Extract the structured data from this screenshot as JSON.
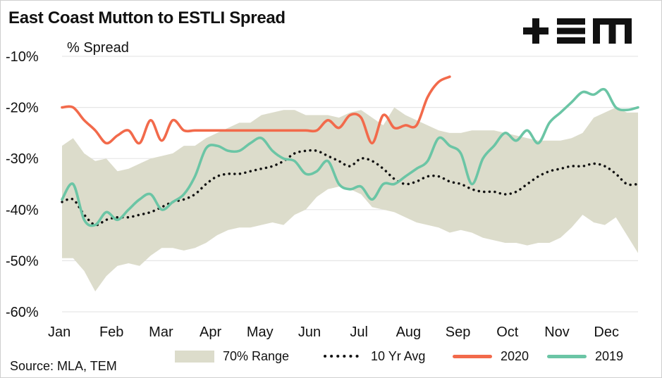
{
  "title": "East Coast Mutton to ESTLI Spread",
  "source": "Source: MLA, TEM",
  "logo_text": "+EM",
  "colors": {
    "range": "#dcdccb",
    "avg": "#111111",
    "s2020": "#f26a4b",
    "s2019": "#6bc5a5",
    "grid": "#e6e6e6"
  },
  "chart_data": {
    "type": "line",
    "ylabel": "% Spread",
    "xlabel": "",
    "ylim": [
      -60,
      -10
    ],
    "yticks": [
      -10,
      -20,
      -30,
      -40,
      -50,
      -60
    ],
    "ytick_labels": [
      "-10%",
      "-20%",
      "-30%",
      "-40%",
      "-50%",
      "-60%"
    ],
    "categories": [
      "Jan",
      "Feb",
      "Mar",
      "Apr",
      "May",
      "Jun",
      "Jul",
      "Aug",
      "Sep",
      "Oct",
      "Nov",
      "Dec"
    ],
    "xlim": [
      0,
      52
    ],
    "grid": "horizontal",
    "legend_position": "bottom",
    "legend": [
      "70% Range",
      "10 Yr Avg",
      "2020",
      "2019"
    ],
    "series": [
      {
        "name": "70% Range",
        "kind": "band",
        "x": [
          0,
          1,
          2,
          3,
          4,
          5,
          6,
          7,
          8,
          9,
          10,
          11,
          12,
          13,
          14,
          15,
          16,
          17,
          18,
          19,
          20,
          21,
          22,
          23,
          24,
          25,
          26,
          27,
          28,
          29,
          30,
          31,
          32,
          33,
          34,
          35,
          36,
          37,
          38,
          39,
          40,
          41,
          42,
          43,
          44,
          45,
          46,
          47,
          48,
          49,
          50,
          51,
          52
        ],
        "upper": [
          -27.5,
          -26,
          -29,
          -30.5,
          -30,
          -32.5,
          -32,
          -31,
          -30,
          -29.5,
          -29,
          -27.5,
          -27.5,
          -26,
          -25,
          -24,
          -23,
          -23,
          -21.5,
          -21,
          -20.5,
          -20.5,
          -21.5,
          -21.5,
          -21.5,
          -22,
          -21,
          -20.5,
          -22,
          -23.5,
          -20,
          -21.5,
          -22.5,
          -23.5,
          -24.5,
          -25,
          -25,
          -24.5,
          -24.5,
          -24.5,
          -25,
          -25.5,
          -26,
          -26.5,
          -26.5,
          -26.5,
          -26,
          -25,
          -22,
          -21,
          -20,
          -21,
          -21
        ],
        "lower": [
          -49.5,
          -49.5,
          -52,
          -56,
          -53,
          -51,
          -50.5,
          -51,
          -49,
          -47.5,
          -47.5,
          -48,
          -47.5,
          -46.5,
          -45,
          -44,
          -43.5,
          -43.5,
          -43,
          -42.5,
          -43,
          -41,
          -40,
          -37.5,
          -36,
          -35.5,
          -36,
          -37,
          -39.5,
          -40,
          -40.5,
          -41.5,
          -42.5,
          -43,
          -43.5,
          -44.5,
          -44,
          -44.5,
          -45.5,
          -46,
          -46.5,
          -46.5,
          -47,
          -46.5,
          -46.5,
          -45.5,
          -43.5,
          -41,
          -42.5,
          -43,
          -41.5,
          -45,
          -48.5
        ]
      },
      {
        "name": "10 Yr Avg",
        "kind": "dotted",
        "x": [
          0,
          1,
          2,
          3,
          4,
          5,
          6,
          7,
          8,
          9,
          10,
          11,
          12,
          13,
          14,
          15,
          16,
          17,
          18,
          19,
          20,
          21,
          22,
          23,
          24,
          25,
          26,
          27,
          28,
          29,
          30,
          31,
          32,
          33,
          34,
          35,
          36,
          37,
          38,
          39,
          40,
          41,
          42,
          43,
          44,
          45,
          46,
          47,
          48,
          49,
          50,
          51,
          52
        ],
        "y": [
          -38.5,
          -38,
          -41,
          -43,
          -42,
          -41.5,
          -41.5,
          -41,
          -40.5,
          -39.5,
          -38.5,
          -38,
          -37,
          -35,
          -33.5,
          -33,
          -33,
          -32.5,
          -32,
          -31.5,
          -30.5,
          -29,
          -28.5,
          -28.5,
          -29.5,
          -30.5,
          -31.5,
          -30,
          -30.5,
          -32,
          -34,
          -35,
          -34.5,
          -33.5,
          -33.5,
          -34.5,
          -35,
          -36,
          -36.5,
          -36.5,
          -37,
          -36.5,
          -35,
          -33.5,
          -32.5,
          -32,
          -31.5,
          -31.5,
          -31,
          -31.5,
          -33,
          -35,
          -35
        ]
      },
      {
        "name": "2020",
        "kind": "solid",
        "x": [
          0,
          1,
          2,
          3,
          4,
          5,
          6,
          7,
          8,
          9,
          10,
          11,
          12,
          13,
          14,
          15,
          16,
          17,
          18,
          19,
          20,
          21,
          22,
          23,
          24,
          25,
          26,
          27,
          28,
          29,
          30,
          31,
          32,
          33,
          34,
          35
        ],
        "y": [
          -20,
          -20,
          -22.5,
          -24.5,
          -27,
          -25.5,
          -24.5,
          -27,
          -22.5,
          -26.5,
          -22.5,
          -24.5,
          -24.5,
          -24.5,
          -24.5,
          -24.5,
          -24.5,
          -24.5,
          -24.5,
          -24.5,
          -24.5,
          -24.5,
          -24.5,
          -24.5,
          -22.5,
          -24,
          -21.5,
          -22,
          -27,
          -21.5,
          -24,
          -23.5,
          -23.5,
          -18,
          -15,
          -14
        ]
      },
      {
        "name": "2019",
        "kind": "solid",
        "x": [
          0,
          1,
          2,
          3,
          4,
          5,
          6,
          7,
          8,
          9,
          10,
          11,
          12,
          13,
          14,
          15,
          16,
          17,
          18,
          19,
          20,
          21,
          22,
          23,
          24,
          25,
          26,
          27,
          28,
          29,
          30,
          31,
          32,
          33,
          34,
          35,
          36,
          37,
          38,
          39,
          40,
          41,
          42,
          43,
          44,
          45,
          46,
          47,
          48,
          49,
          50,
          51,
          52
        ],
        "y": [
          -38,
          -35,
          -42,
          -43,
          -40.5,
          -42,
          -40,
          -38,
          -37,
          -40,
          -38.5,
          -37,
          -33.5,
          -28,
          -27.5,
          -28.5,
          -28.5,
          -27,
          -26,
          -28.5,
          -30,
          -30.5,
          -33,
          -32.5,
          -30.5,
          -35,
          -36,
          -35.5,
          -38,
          -35,
          -35,
          -33.5,
          -32,
          -30.5,
          -26,
          -27.5,
          -29,
          -35,
          -30,
          -27.5,
          -25,
          -26.5,
          -24.5,
          -27,
          -23,
          -21,
          -19,
          -17,
          -17.5,
          -16.5,
          -20,
          -20.5,
          -20
        ]
      }
    ]
  }
}
